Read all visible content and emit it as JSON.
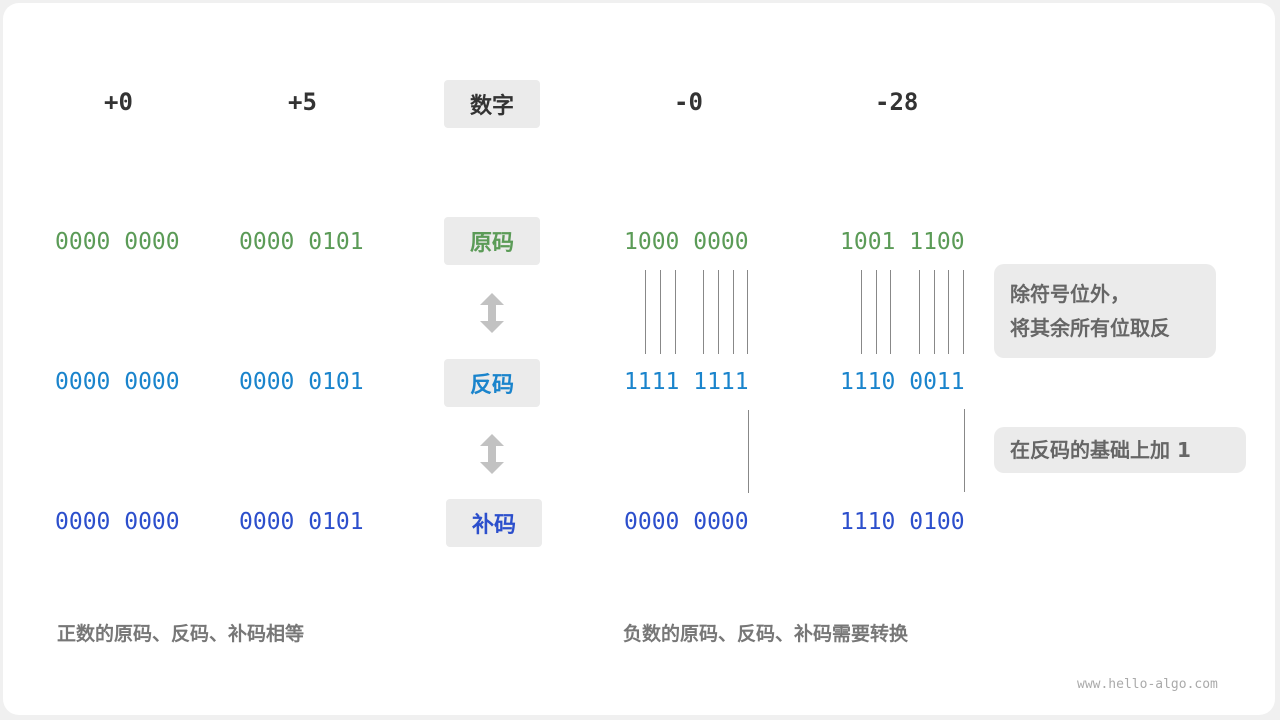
{
  "headers": {
    "pos0": "+0",
    "pos5": "+5",
    "label": "数字",
    "neg0": "-0",
    "neg28": "-28"
  },
  "rows": [
    {
      "label": "原码",
      "pos0": "0000 0000",
      "pos5": "0000 0101",
      "neg0": "1000 0000",
      "neg28": "1001 1100"
    },
    {
      "label": "反码",
      "pos0": "0000 0000",
      "pos5": "0000 0101",
      "neg0": "1111 1111",
      "neg28": "1110 0011"
    },
    {
      "label": "补码",
      "pos0": "0000 0000",
      "pos5": "0000 0101",
      "neg0": "0000 0000",
      "neg28": "1110 0100"
    }
  ],
  "notes": {
    "invert_line1": "除符号位外，",
    "invert_line2": "将其余所有位取反",
    "add_one": "在反码的基础上加 1"
  },
  "footer": {
    "positive": "正数的原码、反码、补码相等",
    "negative": "负数的原码、反码、补码需要转换"
  },
  "watermark": "www.hello-algo.com",
  "colors": {
    "original": "#5b9b57",
    "ones_complement": "#1a84cc",
    "twos_complement": "#2c4fcc"
  }
}
